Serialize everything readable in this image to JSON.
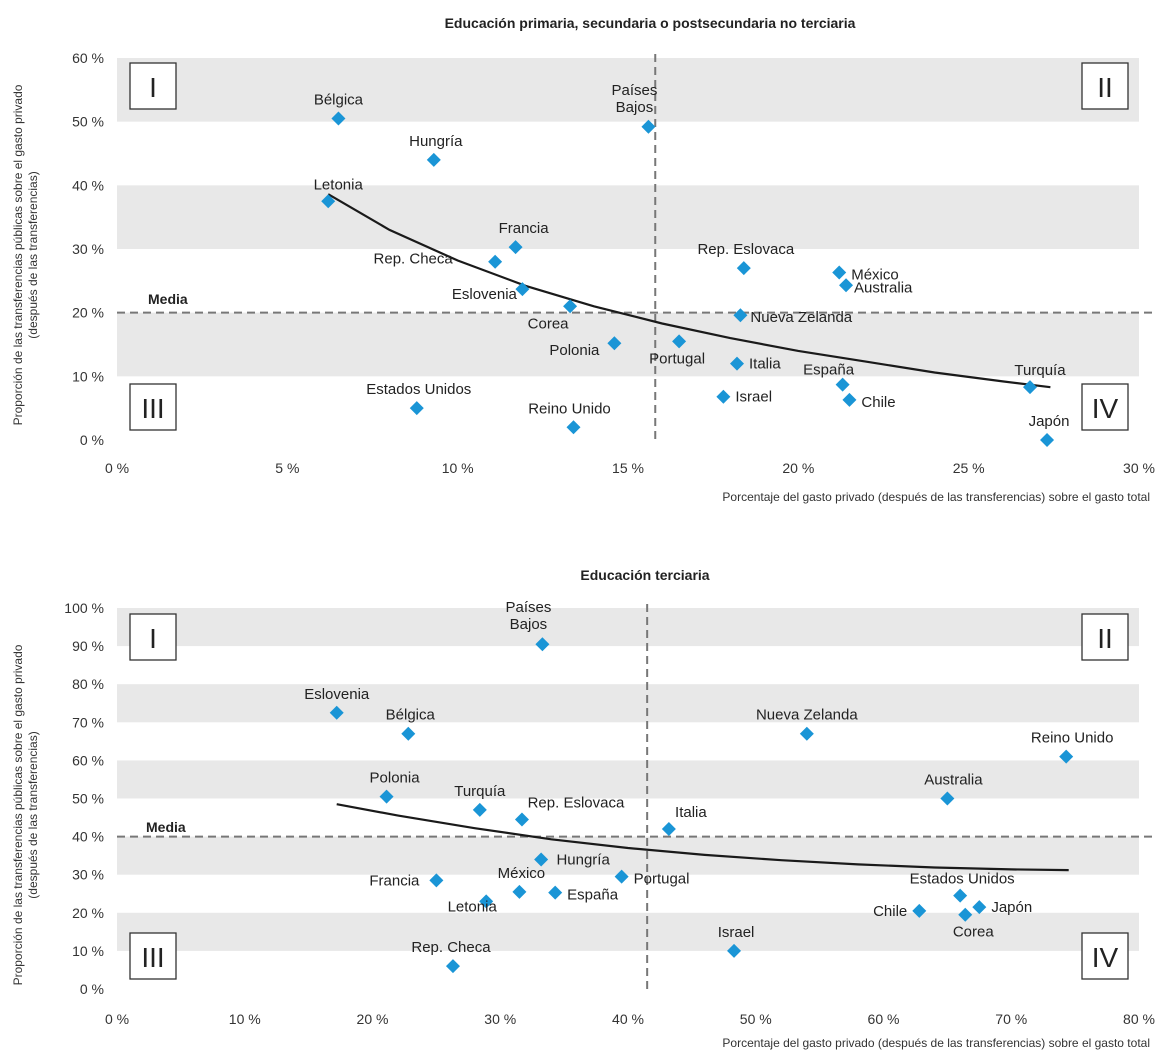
{
  "charts": [
    {
      "type": "scatter",
      "title": "Educación primaria, secundaria o postsecundaria no terciaria",
      "xlabel": "Porcentaje del gasto privado (después de las transferencias) sobre el gasto total",
      "ylabel_line1": "Proporción de las transferencias públicas sobre el gasto privado",
      "ylabel_line2": "(después de las transferencias)",
      "xlim": [
        0,
        30
      ],
      "ylim": [
        0,
        60
      ],
      "xticks": [
        0,
        5,
        10,
        15,
        20,
        25,
        30
      ],
      "yticks": [
        0,
        10,
        20,
        30,
        40,
        50,
        60
      ],
      "xtick_labels": [
        "0 %",
        "5 %",
        "10 %",
        "15 %",
        "20 %",
        "25 %",
        "30 %"
      ],
      "ytick_labels": [
        "0 %",
        "10 %",
        "20 %",
        "30 %",
        "40 %",
        "50 %",
        "60 %"
      ],
      "mean_x": 15.8,
      "mean_y": 20,
      "mean_label": "Media",
      "quadrants": [
        "I",
        "II",
        "III",
        "IV"
      ],
      "marker_color": "#1a95d6",
      "band_color": "#e8e8e8",
      "trend_color": "#1a1a1a",
      "points": [
        {
          "label": "Bélgica",
          "x": 6.5,
          "y": 50.5
        },
        {
          "label": "Hungría",
          "x": 9.3,
          "y": 44
        },
        {
          "label": "Letonia",
          "x": 6.2,
          "y": 37.5
        },
        {
          "label": "Francia",
          "x": 11.7,
          "y": 30.3
        },
        {
          "label": "Rep. Checa",
          "x": 11.1,
          "y": 28
        },
        {
          "label": "Eslovenia",
          "x": 11.9,
          "y": 23.7
        },
        {
          "label": "Corea",
          "x": 13.3,
          "y": 21
        },
        {
          "label": "Polonia",
          "x": 14.6,
          "y": 15.2
        },
        {
          "label": "Estados Unidos",
          "x": 8.8,
          "y": 5
        },
        {
          "label": "Reino Unido",
          "x": 13.4,
          "y": 2
        },
        {
          "label": "Países\nBajos",
          "x": 15.6,
          "y": 49.2
        },
        {
          "label": "Portugal",
          "x": 16.5,
          "y": 15.5
        },
        {
          "label": "Rep. Eslovaca",
          "x": 18.4,
          "y": 27
        },
        {
          "label": "México",
          "x": 21.2,
          "y": 26.3
        },
        {
          "label": "Australia",
          "x": 21.4,
          "y": 24.3
        },
        {
          "label": "Nueva Zelanda",
          "x": 18.3,
          "y": 19.6
        },
        {
          "label": "Italia",
          "x": 18.2,
          "y": 12
        },
        {
          "label": "Israel",
          "x": 17.8,
          "y": 6.8
        },
        {
          "label": "España",
          "x": 21.3,
          "y": 8.7
        },
        {
          "label": "Chile",
          "x": 21.5,
          "y": 6.3
        },
        {
          "label": "Turquía",
          "x": 26.8,
          "y": 8.3
        },
        {
          "label": "Japón",
          "x": 27.3,
          "y": 0
        }
      ],
      "trend": [
        [
          6.2,
          38.6
        ],
        [
          8,
          33
        ],
        [
          10,
          28.2
        ],
        [
          12,
          24.2
        ],
        [
          14,
          21
        ],
        [
          16,
          18.3
        ],
        [
          18,
          16
        ],
        [
          20,
          14
        ],
        [
          22,
          12.3
        ],
        [
          24,
          10.6
        ],
        [
          26,
          9.2
        ],
        [
          27.4,
          8.3
        ]
      ]
    },
    {
      "type": "scatter",
      "title": "Educación terciaria",
      "xlabel": "Porcentaje del gasto privado (después de las transferencias) sobre el gasto total",
      "ylabel_line1": "Proporción de las transferencias públicas sobre el gasto privado",
      "ylabel_line2": "(después de las transferencias)",
      "xlim": [
        0,
        80
      ],
      "ylim": [
        0,
        100
      ],
      "xticks": [
        0,
        10,
        20,
        30,
        40,
        50,
        60,
        70,
        80
      ],
      "yticks": [
        0,
        10,
        20,
        30,
        40,
        50,
        60,
        70,
        80,
        90,
        100
      ],
      "xtick_labels": [
        "0 %",
        "10 %",
        "20 %",
        "30 %",
        "40 %",
        "50 %",
        "60 %",
        "70 %",
        "80 %"
      ],
      "ytick_labels": [
        "0 %",
        "10 %",
        "20 %",
        "30 %",
        "40 %",
        "50 %",
        "60 %",
        "70 %",
        "80 %",
        "90 %",
        "100 %"
      ],
      "mean_x": 41.5,
      "mean_y": 40,
      "mean_label": "Media",
      "quadrants": [
        "I",
        "II",
        "III",
        "IV"
      ],
      "marker_color": "#1a95d6",
      "band_color": "#e8e8e8",
      "trend_color": "#1a1a1a",
      "points": [
        {
          "label": "Países\nBajos",
          "x": 33.3,
          "y": 90.5
        },
        {
          "label": "Eslovenia",
          "x": 17.2,
          "y": 72.5
        },
        {
          "label": "Bélgica",
          "x": 22.8,
          "y": 67
        },
        {
          "label": "Polonia",
          "x": 21.1,
          "y": 50.5
        },
        {
          "label": "Turquía",
          "x": 28.4,
          "y": 47
        },
        {
          "label": "Rep. Eslovaca",
          "x": 31.7,
          "y": 44.5
        },
        {
          "label": "Hungría",
          "x": 33.2,
          "y": 34
        },
        {
          "label": "Francia",
          "x": 25,
          "y": 28.5
        },
        {
          "label": "México",
          "x": 31.5,
          "y": 25.5
        },
        {
          "label": "España",
          "x": 34.3,
          "y": 25.3
        },
        {
          "label": "Letonia",
          "x": 28.9,
          "y": 23
        },
        {
          "label": "Rep. Checa",
          "x": 26.3,
          "y": 6
        },
        {
          "label": "Portugal",
          "x": 39.5,
          "y": 29.5
        },
        {
          "label": "Italia",
          "x": 43.2,
          "y": 42
        },
        {
          "label": "Nueva Zelanda",
          "x": 54,
          "y": 67
        },
        {
          "label": "Reino Unido",
          "x": 74.3,
          "y": 61
        },
        {
          "label": "Australia",
          "x": 65,
          "y": 50
        },
        {
          "label": "Estados Unidos",
          "x": 66,
          "y": 24.5
        },
        {
          "label": "Japón",
          "x": 67.5,
          "y": 21.5
        },
        {
          "label": "Chile",
          "x": 62.8,
          "y": 20.5
        },
        {
          "label": "Corea",
          "x": 66.4,
          "y": 19.5
        },
        {
          "label": "Israel",
          "x": 48.3,
          "y": 10
        }
      ],
      "trend": [
        [
          17.2,
          48.5
        ],
        [
          22,
          45.5
        ],
        [
          28,
          42.2
        ],
        [
          34,
          39.3
        ],
        [
          40,
          37
        ],
        [
          46,
          35.2
        ],
        [
          52,
          33.8
        ],
        [
          58,
          32.7
        ],
        [
          64,
          31.9
        ],
        [
          70,
          31.4
        ],
        [
          74.5,
          31.2
        ]
      ]
    }
  ]
}
